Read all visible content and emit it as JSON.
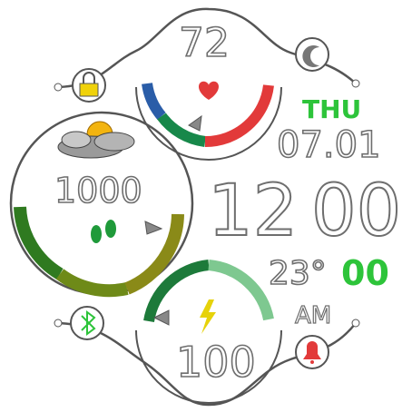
{
  "heart_rate": {
    "value": "72",
    "level": 0.62,
    "icon": "heart-icon",
    "color": "#e23a3a"
  },
  "steps": {
    "value": "1000",
    "level": 0.85,
    "icon": "footprints-icon"
  },
  "battery": {
    "value": "100",
    "level": 1.0,
    "icon": "lightning-icon"
  },
  "clock": {
    "weekday": "THU",
    "date": "07.01",
    "hours": "12",
    "minutes": "00",
    "seconds": "00",
    "ampm": "AM"
  },
  "weather": {
    "temperature": "23°",
    "icon": "cloudy-sun-icon"
  },
  "status_icons": {
    "lock": "lock-icon",
    "do_not_disturb": "moon-icon",
    "bluetooth": "bluetooth-icon",
    "alarm": "alarm-bell-icon"
  },
  "colors": {
    "accent": "#2dc43a",
    "outline": "#6e6e6e",
    "yellow": "#f0d20a"
  }
}
